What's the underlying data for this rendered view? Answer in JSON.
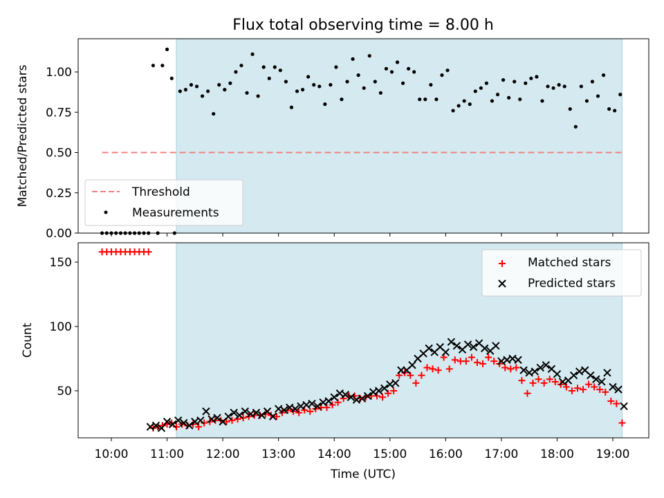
{
  "chart_data": [
    {
      "type": "scatter",
      "title": "Flux total observing time = 8.00 h",
      "ylabel": "Matched/Predicted stars",
      "ylim": [
        0,
        1.2
      ],
      "yticks": [
        "0.00",
        "0.25",
        "0.50",
        "0.75",
        "1.00"
      ],
      "grid": false,
      "legend_position": "lower-left",
      "shaded_span": [
        "11:10",
        "19:10"
      ],
      "colors": {
        "shade": "#d5eaf0",
        "threshold": "#f08080",
        "points": "#000000"
      },
      "series": [
        {
          "name": "Threshold",
          "kind": "dashed-line",
          "x": [
            "09:50",
            "19:10"
          ],
          "y": [
            0.5,
            0.5
          ]
        },
        {
          "name": "Measurements",
          "kind": "points",
          "x": [
            "09:50",
            "09:55",
            "10:00",
            "10:05",
            "10:10",
            "10:15",
            "10:20",
            "10:25",
            "10:30",
            "10:35",
            "10:40",
            "10:45",
            "10:50",
            "10:55",
            "11:00",
            "11:05",
            "11:08",
            "11:14",
            "11:20",
            "11:26",
            "11:32",
            "11:38",
            "11:44",
            "11:50",
            "11:56",
            "12:02",
            "12:08",
            "12:14",
            "12:20",
            "12:26",
            "12:32",
            "12:38",
            "12:44",
            "12:50",
            "12:56",
            "13:02",
            "13:08",
            "13:14",
            "13:20",
            "13:26",
            "13:32",
            "13:38",
            "13:44",
            "13:50",
            "13:56",
            "14:02",
            "14:08",
            "14:14",
            "14:20",
            "14:26",
            "14:32",
            "14:38",
            "14:44",
            "14:50",
            "14:56",
            "15:02",
            "15:08",
            "15:14",
            "15:20",
            "15:26",
            "15:32",
            "15:38",
            "15:44",
            "15:50",
            "15:56",
            "16:02",
            "16:08",
            "16:14",
            "16:20",
            "16:26",
            "16:32",
            "16:38",
            "16:44",
            "16:50",
            "16:56",
            "17:02",
            "17:08",
            "17:14",
            "17:20",
            "17:26",
            "17:32",
            "17:38",
            "17:44",
            "17:50",
            "17:56",
            "18:02",
            "18:08",
            "18:14",
            "18:20",
            "18:26",
            "18:32",
            "18:38",
            "18:44",
            "18:50",
            "18:56",
            "19:02",
            "19:08"
          ],
          "y": [
            0,
            0,
            0,
            0,
            0,
            0,
            0,
            0,
            0,
            0,
            0,
            1.04,
            0,
            1.04,
            1.14,
            0.96,
            0,
            0.88,
            0.89,
            0.92,
            0.91,
            0.85,
            0.88,
            0.74,
            0.92,
            0.89,
            0.93,
            1.0,
            1.04,
            0.87,
            1.11,
            0.85,
            1.03,
            0.96,
            1.03,
            1.01,
            0.94,
            0.78,
            0.88,
            0.89,
            0.97,
            0.92,
            0.91,
            0.8,
            0.92,
            1.03,
            0.83,
            0.94,
            1.08,
            0.98,
            0.9,
            1.1,
            0.94,
            0.87,
            1.02,
            1.0,
            1.06,
            0.93,
            1.02,
            1.0,
            0.83,
            0.83,
            0.92,
            0.83,
            0.98,
            1.01,
            0.76,
            0.79,
            0.82,
            0.8,
            0.88,
            0.9,
            0.93,
            0.82,
            0.86,
            0.95,
            0.84,
            0.94,
            0.83,
            0.93,
            0.96,
            0.97,
            0.82,
            0.91,
            0.9,
            0.92,
            0.91,
            0.77,
            0.66,
            0.91,
            0.82,
            0.94,
            0.85,
            0.98,
            0.77,
            0.76,
            0.86
          ]
        }
      ]
    },
    {
      "type": "scatter",
      "xlabel": "Time (UTC)",
      "ylabel": "Count",
      "ylim": [
        14,
        168
      ],
      "yticks": [
        "50",
        "100",
        "150"
      ],
      "xticks": [
        "10:00",
        "11:00",
        "12:00",
        "13:00",
        "14:00",
        "15:00",
        "16:00",
        "17:00",
        "18:00",
        "19:00"
      ],
      "grid": false,
      "legend_position": "top-right",
      "shaded_span": [
        "11:10",
        "19:10"
      ],
      "colors": {
        "shade": "#d5eaf0",
        "matched": "#ff0000",
        "predicted": "#000000"
      },
      "series": [
        {
          "name": "Matched stars",
          "marker": "plus",
          "x": [
            "09:50",
            "09:55",
            "10:00",
            "10:05",
            "10:10",
            "10:15",
            "10:20",
            "10:25",
            "10:30",
            "10:35",
            "10:40",
            "10:45",
            "10:50",
            "10:55",
            "11:00",
            "11:05",
            "11:10",
            "11:16",
            "11:22",
            "11:28",
            "11:34",
            "11:40",
            "11:46",
            "11:52",
            "11:58",
            "12:04",
            "12:10",
            "12:16",
            "12:22",
            "12:28",
            "12:34",
            "12:40",
            "12:46",
            "12:52",
            "12:58",
            "13:04",
            "13:10",
            "13:16",
            "13:22",
            "13:28",
            "13:34",
            "13:40",
            "13:46",
            "13:52",
            "13:58",
            "14:04",
            "14:10",
            "14:16",
            "14:22",
            "14:28",
            "14:34",
            "14:40",
            "14:46",
            "14:52",
            "14:58",
            "15:04",
            "15:10",
            "15:16",
            "15:22",
            "15:28",
            "15:34",
            "15:40",
            "15:46",
            "15:52",
            "15:58",
            "16:04",
            "16:10",
            "16:16",
            "16:22",
            "16:28",
            "16:34",
            "16:40",
            "16:46",
            "16:52",
            "16:58",
            "17:04",
            "17:10",
            "17:16",
            "17:22",
            "17:28",
            "17:34",
            "17:40",
            "17:46",
            "17:52",
            "17:58",
            "18:04",
            "18:10",
            "18:16",
            "18:22",
            "18:28",
            "18:34",
            "18:40",
            "18:46",
            "18:52",
            "18:58",
            "19:04",
            "19:10"
          ],
          "y": [
            158,
            158,
            158,
            158,
            158,
            158,
            158,
            158,
            158,
            158,
            158,
            21,
            22,
            23,
            24,
            25,
            22,
            24,
            23,
            24,
            22,
            25,
            26,
            27,
            27,
            26,
            27,
            28,
            29,
            30,
            31,
            31,
            32,
            31,
            30,
            33,
            35,
            34,
            33,
            35,
            34,
            36,
            37,
            37,
            39,
            41,
            44,
            46,
            46,
            44,
            45,
            46,
            46,
            45,
            48,
            50,
            62,
            64,
            62,
            56,
            62,
            68,
            67,
            66,
            76,
            67,
            74,
            73,
            73,
            76,
            72,
            71,
            76,
            73,
            71,
            68,
            67,
            68,
            58,
            48,
            56,
            59,
            56,
            59,
            57,
            55,
            53,
            50,
            52,
            51,
            55,
            53,
            51,
            49,
            42,
            40,
            25
          ]
        },
        {
          "name": "Predicted stars",
          "marker": "x",
          "x": [
            "10:42",
            "10:48",
            "10:54",
            "11:00",
            "11:06",
            "11:12",
            "11:18",
            "11:24",
            "11:30",
            "11:36",
            "11:42",
            "11:48",
            "11:54",
            "12:00",
            "12:06",
            "12:12",
            "12:18",
            "12:24",
            "12:30",
            "12:36",
            "12:42",
            "12:48",
            "12:54",
            "13:00",
            "13:06",
            "13:12",
            "13:18",
            "13:24",
            "13:30",
            "13:36",
            "13:42",
            "13:48",
            "13:54",
            "14:00",
            "14:06",
            "14:12",
            "14:18",
            "14:24",
            "14:30",
            "14:36",
            "14:42",
            "14:48",
            "14:54",
            "15:00",
            "15:06",
            "15:12",
            "15:18",
            "15:24",
            "15:30",
            "15:36",
            "15:42",
            "15:48",
            "15:54",
            "16:00",
            "16:06",
            "16:12",
            "16:18",
            "16:24",
            "16:30",
            "16:36",
            "16:42",
            "16:48",
            "16:54",
            "17:00",
            "17:06",
            "17:12",
            "17:18",
            "17:24",
            "17:30",
            "17:36",
            "17:42",
            "17:48",
            "17:54",
            "18:00",
            "18:06",
            "18:12",
            "18:18",
            "18:24",
            "18:30",
            "18:36",
            "18:42",
            "18:48",
            "18:54",
            "19:00",
            "19:06",
            "19:12"
          ],
          "y": [
            22,
            23,
            21,
            26,
            24,
            27,
            25,
            23,
            26,
            27,
            34,
            28,
            29,
            26,
            30,
            33,
            31,
            34,
            32,
            33,
            31,
            34,
            30,
            36,
            35,
            37,
            36,
            38,
            39,
            40,
            38,
            41,
            42,
            45,
            48,
            47,
            45,
            43,
            44,
            46,
            49,
            50,
            52,
            55,
            56,
            66,
            66,
            70,
            75,
            79,
            83,
            80,
            84,
            80,
            88,
            85,
            82,
            86,
            84,
            87,
            83,
            81,
            85,
            73,
            74,
            75,
            74,
            66,
            64,
            65,
            68,
            70,
            67,
            63,
            57,
            58,
            62,
            65,
            66,
            62,
            59,
            57,
            64,
            53,
            51,
            38
          ]
        }
      ]
    }
  ]
}
